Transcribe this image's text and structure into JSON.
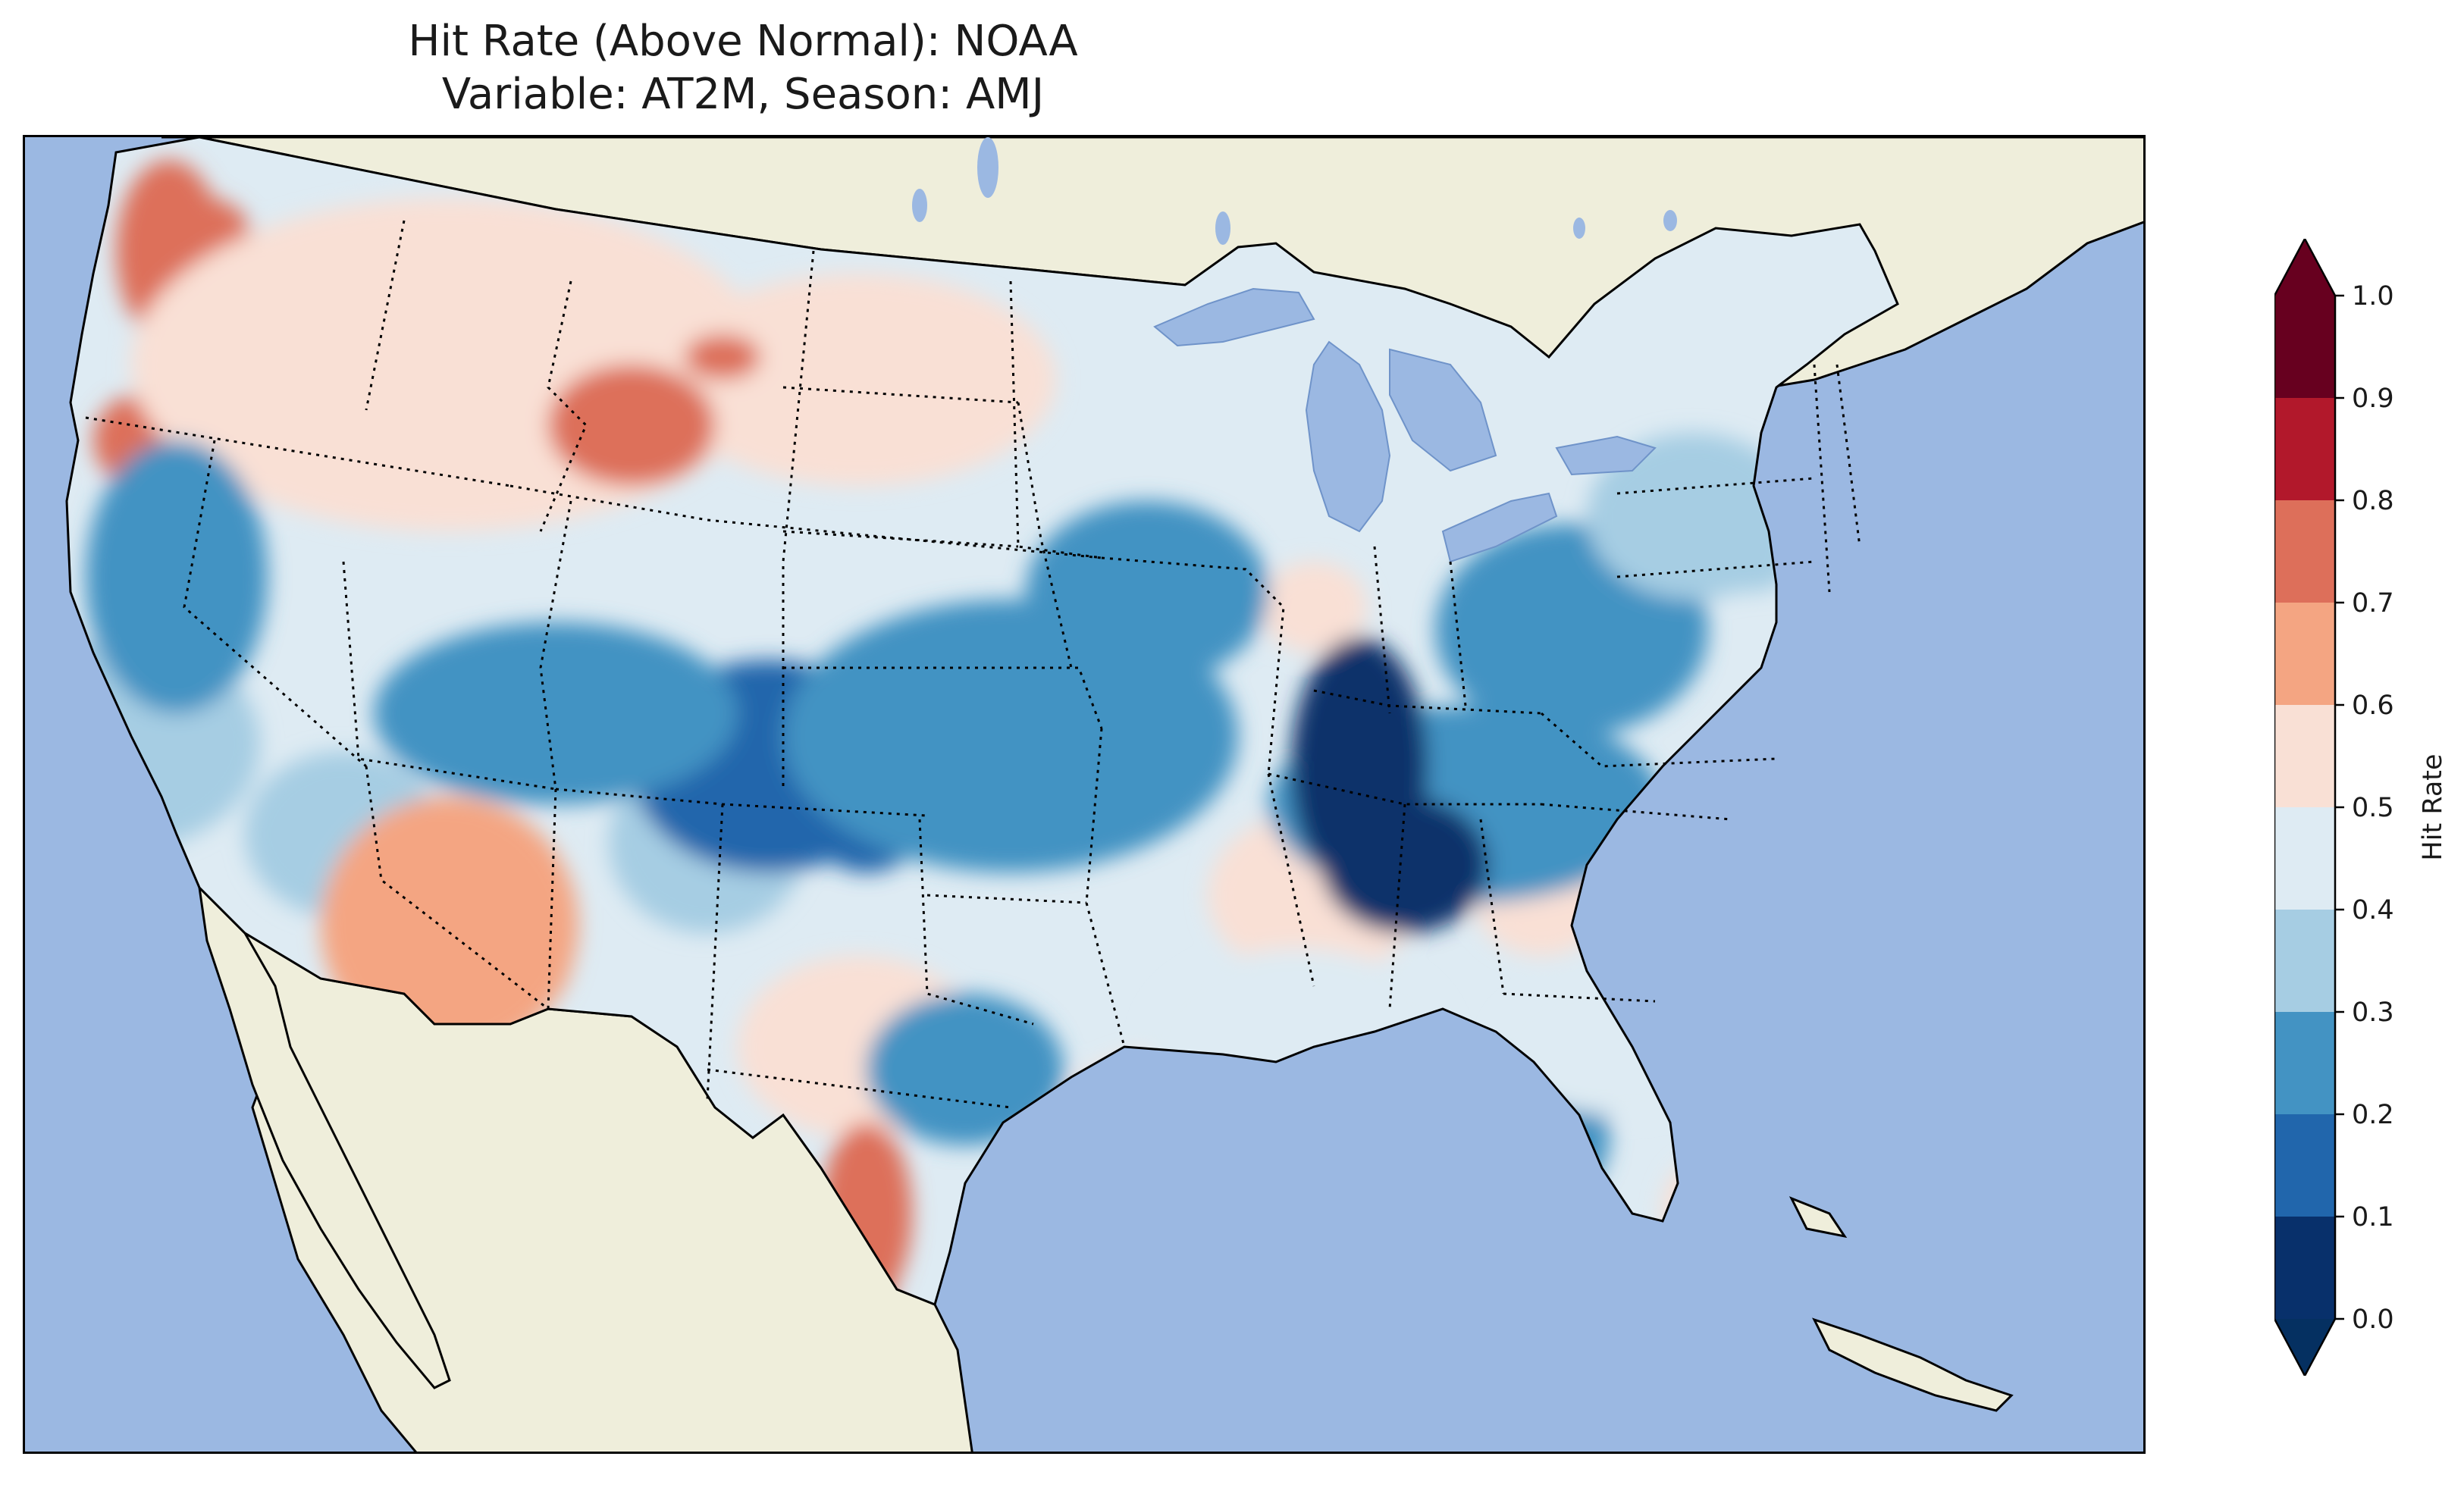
{
  "title": {
    "line1": "Hit Rate (Above Normal): NOAA",
    "line2": "Variable: AT2M, Season: AMJ"
  },
  "colors": {
    "ocean": "#9bb8e2",
    "land": "#efeedb",
    "lakes": "#9bb8e2",
    "coast": "#000000",
    "borders": "#000000"
  },
  "colorbar": {
    "label": "Hit Rate",
    "ticks": [
      "0.0",
      "0.1",
      "0.2",
      "0.3",
      "0.4",
      "0.5",
      "0.6",
      "0.7",
      "0.8",
      "0.9",
      "1.0"
    ],
    "bins": [
      {
        "from": 0.0,
        "to": 0.1,
        "color": "#08306b"
      },
      {
        "from": 0.1,
        "to": 0.2,
        "color": "#2166ac"
      },
      {
        "from": 0.2,
        "to": 0.3,
        "color": "#4393c3"
      },
      {
        "from": 0.3,
        "to": 0.4,
        "color": "#a6cde3"
      },
      {
        "from": 0.4,
        "to": 0.5,
        "color": "#deebf3"
      },
      {
        "from": 0.5,
        "to": 0.6,
        "color": "#f9e0d5"
      },
      {
        "from": 0.6,
        "to": 0.7,
        "color": "#f4a582"
      },
      {
        "from": 0.7,
        "to": 0.8,
        "color": "#dd6f5a"
      },
      {
        "from": 0.8,
        "to": 0.9,
        "color": "#b2182b"
      },
      {
        "from": 0.9,
        "to": 1.0,
        "color": "#67001f"
      }
    ],
    "under_color": "#053061",
    "over_color": "#67001f",
    "extend": "both"
  },
  "regions": [
    {
      "name": "Pacific Northwest coast",
      "value": 0.72
    },
    {
      "name": "Northern Rockies / Plains",
      "value": 0.53
    },
    {
      "name": "Montana hotspot",
      "value": 0.72
    },
    {
      "name": "Great Basin",
      "value": 0.35
    },
    {
      "name": "Desert Southwest",
      "value": 0.68
    },
    {
      "name": "Central Rockies",
      "value": 0.15
    },
    {
      "name": "Central Plains",
      "value": 0.25
    },
    {
      "name": "Ohio Valley",
      "value": 0.05
    },
    {
      "name": "West Texas",
      "value": 0.72
    },
    {
      "name": "Southeast",
      "value": 0.45
    },
    {
      "name": "Northeast",
      "value": 0.3
    },
    {
      "name": "Florida",
      "value": 0.45
    }
  ]
}
